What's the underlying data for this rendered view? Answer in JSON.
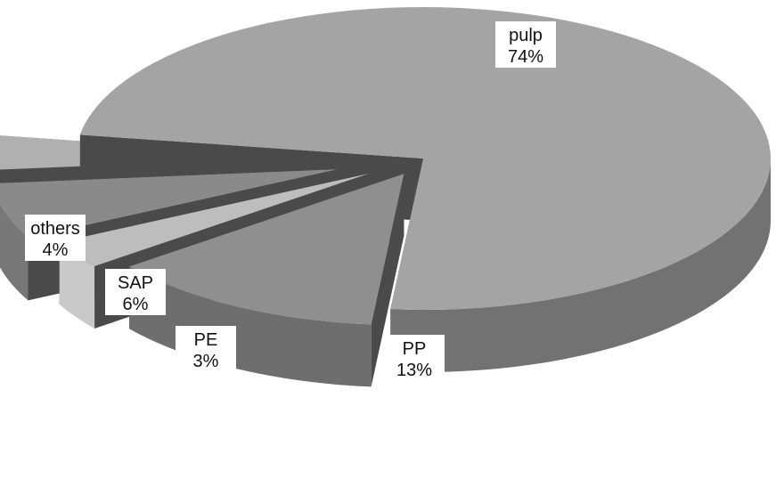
{
  "chart_data": {
    "type": "pie",
    "style": "3d-exploded",
    "slices": [
      {
        "name": "pulp",
        "value": 74,
        "label": "74%",
        "color": "#a4a4a4",
        "side_color": "#727272"
      },
      {
        "name": "PP",
        "value": 13,
        "label": "13%",
        "color": "#8f8f8f",
        "side_color": "#6e6e6e"
      },
      {
        "name": "PE",
        "value": 3,
        "label": "3%",
        "color": "#bdbdbd",
        "side_color": "#c9c9c9"
      },
      {
        "name": "SAP",
        "value": 6,
        "label": "6%",
        "color": "#8a8a8a",
        "side_color": "#777777"
      },
      {
        "name": "others",
        "value": 4,
        "label": "4%",
        "color": "#b0b0b0",
        "side_color": "#9a9a9a"
      }
    ],
    "inner_wall_color": "#4a4a4a",
    "title": "",
    "legend": "none"
  }
}
